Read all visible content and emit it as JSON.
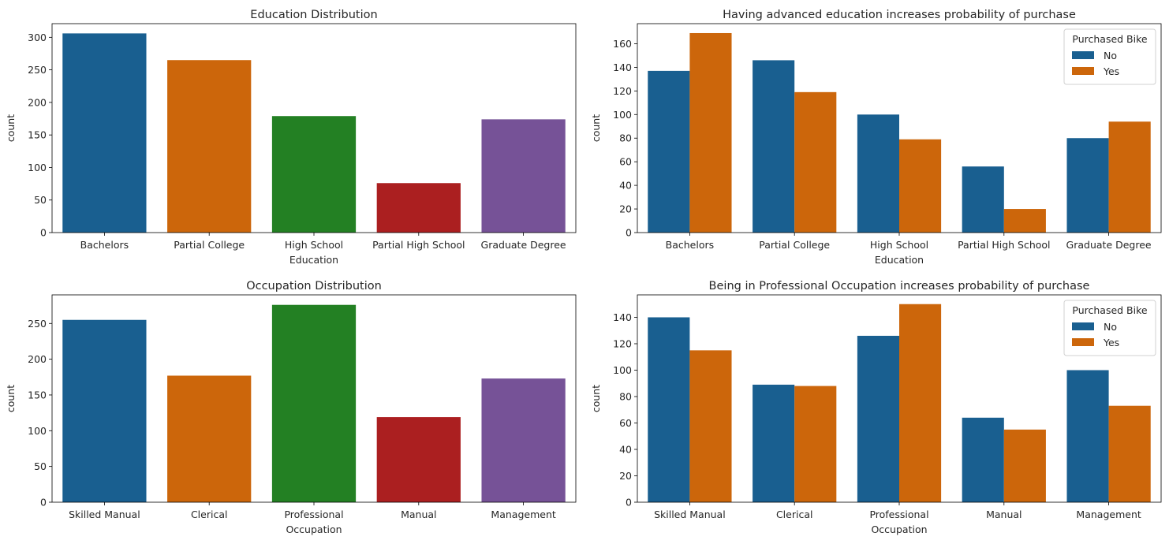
{
  "chart_data": [
    {
      "type": "bar",
      "title": "Education Distribution",
      "xlabel": "Education",
      "ylabel": "count",
      "categories": [
        "Bachelors",
        "Partial College",
        "High School",
        "Partial High School",
        "Graduate Degree"
      ],
      "values": [
        306,
        265,
        179,
        76,
        174
      ],
      "bar_colors": [
        "#1f77b4",
        "#ff7f0e",
        "#2ca02c",
        "#d62728",
        "#9467bd"
      ],
      "ylim": [
        0,
        321
      ],
      "yticks": [
        0,
        50,
        100,
        150,
        200,
        250,
        300
      ],
      "grid": false
    },
    {
      "type": "bar",
      "title": "Having advanced education increases probability of purchase",
      "xlabel": "Education",
      "ylabel": "count",
      "categories": [
        "Bachelors",
        "Partial College",
        "High School",
        "Partial High School",
        "Graduate Degree"
      ],
      "legend": {
        "title": "Purchased Bike",
        "position": "top-right"
      },
      "series": [
        {
          "name": "No",
          "color": "#1f77b4",
          "values": [
            137,
            146,
            100,
            56,
            80
          ]
        },
        {
          "name": "Yes",
          "color": "#ff7f0e",
          "values": [
            169,
            119,
            79,
            20,
            94
          ]
        }
      ],
      "ylim": [
        0,
        177
      ],
      "yticks": [
        0,
        20,
        40,
        60,
        80,
        100,
        120,
        140,
        160
      ],
      "grid": false
    },
    {
      "type": "bar",
      "title": "Occupation Distribution",
      "xlabel": "Occupation",
      "ylabel": "count",
      "categories": [
        "Skilled Manual",
        "Clerical",
        "Professional",
        "Manual",
        "Management"
      ],
      "values": [
        255,
        177,
        276,
        119,
        173
      ],
      "bar_colors": [
        "#1f77b4",
        "#ff7f0e",
        "#2ca02c",
        "#d62728",
        "#9467bd"
      ],
      "ylim": [
        0,
        290
      ],
      "yticks": [
        0,
        50,
        100,
        150,
        200,
        250
      ],
      "grid": false
    },
    {
      "type": "bar",
      "title": "Being in Professional Occupation increases probability of purchase",
      "xlabel": "Occupation",
      "ylabel": "count",
      "categories": [
        "Skilled Manual",
        "Clerical",
        "Professional",
        "Manual",
        "Management"
      ],
      "legend": {
        "title": "Purchased Bike",
        "position": "top-right"
      },
      "series": [
        {
          "name": "No",
          "color": "#1f77b4",
          "values": [
            140,
            89,
            126,
            64,
            100
          ]
        },
        {
          "name": "Yes",
          "color": "#ff7f0e",
          "values": [
            115,
            88,
            150,
            55,
            73
          ]
        }
      ],
      "ylim": [
        0,
        157
      ],
      "yticks": [
        0,
        20,
        40,
        60,
        80,
        100,
        120,
        140
      ],
      "grid": false
    }
  ]
}
